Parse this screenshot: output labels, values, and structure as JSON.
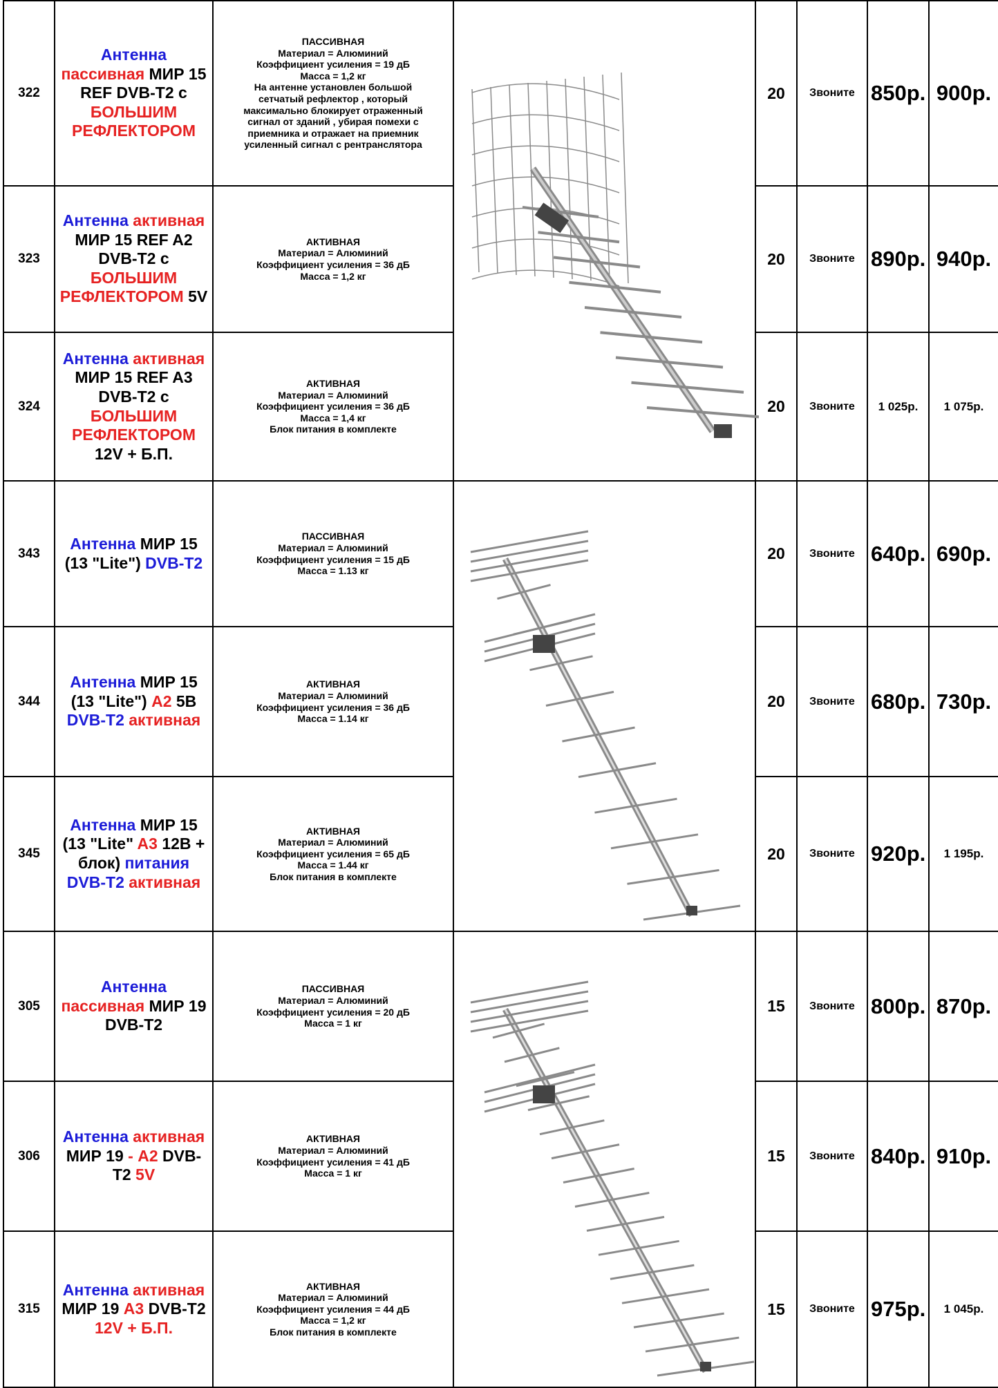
{
  "rows": [
    {
      "code": "322",
      "name": [
        [
          "Антенна",
          "blue"
        ],
        [
          "пассивная",
          "red"
        ],
        [
          "МИР 15 REF DVB-T2 с",
          "black"
        ],
        [
          "БОЛЬШИМ РЕФЛЕКТОРОМ",
          "red"
        ]
      ],
      "desc": [
        "ПАССИВНАЯ",
        "Материал = Алюминий",
        "Коэффициент усиления = 19 дБ",
        "Масса = 1,2 кг",
        "На антенне установлен большой",
        "сетчатый рефлектор , который",
        "максимально блокирует отраженный",
        "сигнал от зданий , убирая помехи с",
        "приемника и отражает на приемник",
        "усиленный сигнал с рентранслятора"
      ],
      "qty": "20",
      "call": "Звоните",
      "price1": "850р.",
      "price2": "900р.",
      "p1size": "big",
      "p2size": "big"
    },
    {
      "code": "323",
      "name": [
        [
          "Антенна",
          "blue"
        ],
        [
          "активная",
          "red"
        ],
        [
          "МИР 15 REF A2 DVB-T2 с",
          "black"
        ],
        [
          "БОЛЬШИМ РЕФЛЕКТОРОМ",
          "red"
        ],
        [
          "5V",
          "black"
        ]
      ],
      "desc": [
        "АКТИВНАЯ",
        "Материал = Алюминий",
        "Коэффициент усиления = 36 дБ",
        "Масса = 1,2 кг"
      ],
      "qty": "20",
      "call": "Звоните",
      "price1": "890р.",
      "price2": "940р.",
      "p1size": "big",
      "p2size": "big"
    },
    {
      "code": "324",
      "name": [
        [
          "Антенна",
          "blue"
        ],
        [
          "активная",
          "red"
        ],
        [
          "МИР 15 REF A3 DVB-T2 с",
          "black"
        ],
        [
          "БОЛЬШИМ РЕФЛЕКТОРОМ",
          "red"
        ],
        [
          "12V + Б.П.",
          "black"
        ]
      ],
      "desc": [
        "АКТИВНАЯ",
        "Материал = Алюминий",
        "Коэффициент усиления = 36 дБ",
        "Масса = 1,4 кг",
        "Блок питания в комплекте"
      ],
      "qty": "20",
      "call": "Звоните",
      "price1": "1 025р.",
      "price2": "1 075р.",
      "p1size": "small",
      "p2size": "small"
    },
    {
      "code": "343",
      "name": [
        [
          "Антенна",
          "blue"
        ],
        [
          "МИР 15 (13 \"Lite\")",
          "black"
        ],
        [
          "DVB-T2",
          "blue"
        ]
      ],
      "desc": [
        "ПАССИВНАЯ",
        "Материал = Алюминий",
        "Коэффициент усиления = 15 дБ",
        "Масса = 1.13 кг"
      ],
      "qty": "20",
      "call": "Звоните",
      "price1": "640р.",
      "price2": "690р.",
      "p1size": "big",
      "p2size": "big"
    },
    {
      "code": "344",
      "name": [
        [
          "Антенна",
          "blue"
        ],
        [
          "МИР 15 (13 \"Lite\")",
          "black"
        ],
        [
          "A2",
          "red"
        ],
        [
          "5В",
          "black"
        ],
        [
          "DVB-T2",
          "blue"
        ],
        [
          "активная",
          "red"
        ]
      ],
      "desc": [
        "АКТИВНАЯ",
        "Материал = Алюминий",
        "Коэффициент усиления = 36 дБ",
        "Масса = 1.14 кг"
      ],
      "qty": "20",
      "call": "Звоните",
      "price1": "680р.",
      "price2": "730р.",
      "p1size": "big",
      "p2size": "big"
    },
    {
      "code": "345",
      "name": [
        [
          "Антенна",
          "blue"
        ],
        [
          "МИР 15 (13 \"Lite\"",
          "black"
        ],
        [
          "A3",
          "red"
        ],
        [
          "12В + блок)",
          "black"
        ],
        [
          "питания",
          "blue"
        ],
        [
          "DVB-T2",
          "blue"
        ],
        [
          "активная",
          "red"
        ]
      ],
      "desc": [
        "АКТИВНАЯ",
        "Материал = Алюминий",
        "Коэффициент усиления = 65 дБ",
        "Масса = 1.44 кг",
        "Блок питания в комплекте"
      ],
      "qty": "20",
      "call": "Звоните",
      "price1": "920р.",
      "price2": "1 195р.",
      "p1size": "big",
      "p2size": "small"
    },
    {
      "code": "305",
      "name": [
        [
          "Антенна",
          "blue"
        ],
        [
          "пассивная",
          "red"
        ],
        [
          "МИР 19 DVB-T2",
          "black"
        ]
      ],
      "desc": [
        "ПАССИВНАЯ",
        "Материал = Алюминий",
        "Коэффициент усиления = 20 дБ",
        "Масса = 1 кг"
      ],
      "qty": "15",
      "call": "Звоните",
      "price1": "800р.",
      "price2": "870р.",
      "p1size": "big",
      "p2size": "big"
    },
    {
      "code": "306",
      "name": [
        [
          "Антенна",
          "blue"
        ],
        [
          "активная",
          "red"
        ],
        [
          "МИР 19",
          "black"
        ],
        [
          "- A2",
          "red"
        ],
        [
          "DVB-T2",
          "black"
        ],
        [
          "5V",
          "red"
        ]
      ],
      "desc": [
        "АКТИВНАЯ",
        "Материал = Алюминий",
        "Коэффициент усиления = 41 дБ",
        "Масса = 1 кг"
      ],
      "qty": "15",
      "call": "Звоните",
      "price1": "840р.",
      "price2": "910р.",
      "p1size": "big",
      "p2size": "big"
    },
    {
      "code": "315",
      "name": [
        [
          "Антенна",
          "blue"
        ],
        [
          "активная",
          "red"
        ],
        [
          "МИР 19",
          "black"
        ],
        [
          "A3",
          "red"
        ],
        [
          "DVB-T2",
          "black"
        ],
        [
          "12V + Б.П.",
          "red"
        ]
      ],
      "desc": [
        "АКТИВНАЯ",
        "Материал = Алюминий",
        "Коэффициент усиления = 44 дБ",
        "Масса = 1,2 кг",
        "Блок питания в комплекте"
      ],
      "qty": "15",
      "call": "Звоните",
      "price1": "975р.",
      "price2": "1 045р.",
      "p1size": "big",
      "p2size": "small"
    }
  ],
  "images": [
    "antenna-mir15-ref-image",
    "antenna-mir15-lite-image",
    "antenna-mir19-image"
  ],
  "colors": {
    "blue": "#1c1cd8",
    "red": "#e62222",
    "border": "#000000"
  }
}
